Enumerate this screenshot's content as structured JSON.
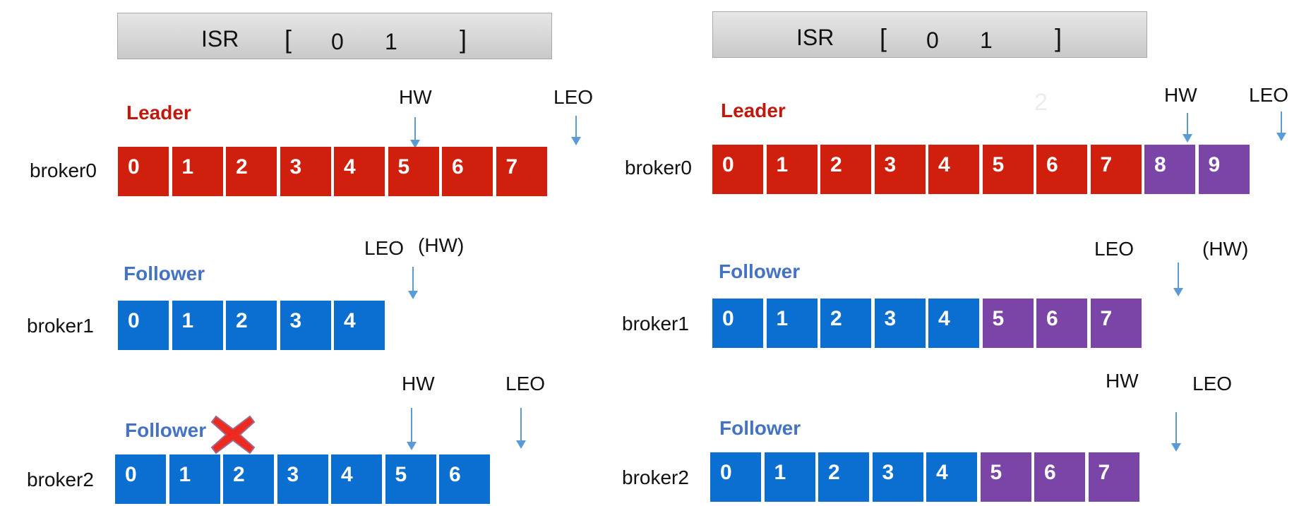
{
  "colors": {
    "leader_cell": "#d01f0c",
    "follower_cell": "#0a6fd0",
    "new_cell": "#7b45a8",
    "leader_text": "#c0180c",
    "follower_text": "#4472c4",
    "arrow": "#5b9bd5",
    "cross": "#ee2a20"
  },
  "left": {
    "isr": {
      "label": "ISR",
      "open": "[",
      "close": "]",
      "members": [
        "0",
        "1"
      ]
    },
    "leader_label": "Leader",
    "follower_label": "Follower",
    "brokers": [
      {
        "name": "broker0",
        "cells": [
          {
            "v": "0",
            "t": "leader"
          },
          {
            "v": "1",
            "t": "leader"
          },
          {
            "v": "2",
            "t": "leader"
          },
          {
            "v": "3",
            "t": "leader"
          },
          {
            "v": "4",
            "t": "leader"
          },
          {
            "v": "5",
            "t": "leader"
          },
          {
            "v": "6",
            "t": "leader"
          },
          {
            "v": "7",
            "t": "leader"
          }
        ]
      },
      {
        "name": "broker1",
        "cells": [
          {
            "v": "0",
            "t": "follower"
          },
          {
            "v": "1",
            "t": "follower"
          },
          {
            "v": "2",
            "t": "follower"
          },
          {
            "v": "3",
            "t": "follower"
          },
          {
            "v": "4",
            "t": "follower"
          }
        ]
      },
      {
        "name": "broker2",
        "cells": [
          {
            "v": "0",
            "t": "follower"
          },
          {
            "v": "1",
            "t": "follower"
          },
          {
            "v": "2",
            "t": "follower"
          },
          {
            "v": "3",
            "t": "follower"
          },
          {
            "v": "4",
            "t": "follower"
          },
          {
            "v": "5",
            "t": "follower"
          },
          {
            "v": "6",
            "t": "follower"
          }
        ]
      }
    ],
    "markers": {
      "b0_hw": "HW",
      "b0_leo": "LEO",
      "b1_leo": "LEO",
      "b1_hw": "(HW)",
      "b2_hw": "HW",
      "b2_leo": "LEO"
    }
  },
  "right": {
    "isr": {
      "label": "ISR",
      "open": "[",
      "close": "]",
      "members": [
        "0",
        "1"
      ]
    },
    "leader_label": "Leader",
    "follower_label": "Follower",
    "faint_text": "2",
    "brokers": [
      {
        "name": "broker0",
        "cells": [
          {
            "v": "0",
            "t": "leader"
          },
          {
            "v": "1",
            "t": "leader"
          },
          {
            "v": "2",
            "t": "leader"
          },
          {
            "v": "3",
            "t": "leader"
          },
          {
            "v": "4",
            "t": "leader"
          },
          {
            "v": "5",
            "t": "leader"
          },
          {
            "v": "6",
            "t": "leader"
          },
          {
            "v": "7",
            "t": "leader"
          },
          {
            "v": "8",
            "t": "new"
          },
          {
            "v": "9",
            "t": "new"
          }
        ]
      },
      {
        "name": "broker1",
        "cells": [
          {
            "v": "0",
            "t": "follower"
          },
          {
            "v": "1",
            "t": "follower"
          },
          {
            "v": "2",
            "t": "follower"
          },
          {
            "v": "3",
            "t": "follower"
          },
          {
            "v": "4",
            "t": "follower"
          },
          {
            "v": "5",
            "t": "new"
          },
          {
            "v": "6",
            "t": "new"
          },
          {
            "v": "7",
            "t": "new"
          }
        ]
      },
      {
        "name": "broker2",
        "cells": [
          {
            "v": "0",
            "t": "follower"
          },
          {
            "v": "1",
            "t": "follower"
          },
          {
            "v": "2",
            "t": "follower"
          },
          {
            "v": "3",
            "t": "follower"
          },
          {
            "v": "4",
            "t": "follower"
          },
          {
            "v": "5",
            "t": "new"
          },
          {
            "v": "6",
            "t": "new"
          },
          {
            "v": "7",
            "t": "new"
          }
        ]
      }
    ],
    "markers": {
      "b0_hw": "HW",
      "b0_leo": "LEO",
      "b1_leo": "LEO",
      "b1_hw": "(HW)",
      "b2_hw": "HW",
      "b2_leo": "LEO"
    }
  }
}
